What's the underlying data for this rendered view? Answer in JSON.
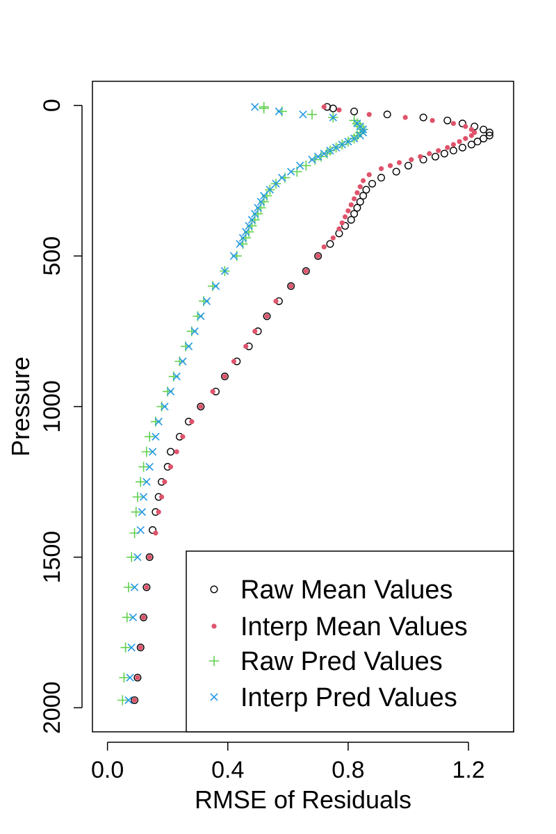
{
  "chart_data": {
    "type": "scatter",
    "title": "",
    "xlabel": "RMSE of Residuals",
    "ylabel": "Pressure",
    "xlim": [
      -0.05,
      1.35
    ],
    "ylim": [
      2080,
      -80
    ],
    "y_reversed": true,
    "x_ticks": [
      "0.0",
      "0.4",
      "0.8",
      "1.2"
    ],
    "x_tick_values": [
      0.0,
      0.4,
      0.8,
      1.2
    ],
    "y_ticks": [
      "0",
      "500",
      "1000",
      "1500",
      "2000"
    ],
    "y_tick_values": [
      0,
      500,
      1000,
      1500,
      2000
    ],
    "grid": false,
    "legend_position": "bottom-right",
    "series": [
      {
        "name": "Raw Mean Values",
        "marker": "open-circle",
        "color": "#000000",
        "points": [
          [
            0.73,
            5
          ],
          [
            0.75,
            10
          ],
          [
            0.82,
            20
          ],
          [
            0.93,
            30
          ],
          [
            1.05,
            40
          ],
          [
            1.13,
            50
          ],
          [
            1.18,
            60
          ],
          [
            1.22,
            70
          ],
          [
            1.25,
            80
          ],
          [
            1.27,
            90
          ],
          [
            1.27,
            100
          ],
          [
            1.25,
            110
          ],
          [
            1.23,
            120
          ],
          [
            1.21,
            130
          ],
          [
            1.18,
            140
          ],
          [
            1.15,
            150
          ],
          [
            1.12,
            160
          ],
          [
            1.09,
            170
          ],
          [
            1.05,
            180
          ],
          [
            1.0,
            200
          ],
          [
            0.96,
            220
          ],
          [
            0.91,
            240
          ],
          [
            0.88,
            260
          ],
          [
            0.86,
            280
          ],
          [
            0.85,
            300
          ],
          [
            0.84,
            320
          ],
          [
            0.83,
            340
          ],
          [
            0.82,
            360
          ],
          [
            0.81,
            380
          ],
          [
            0.79,
            400
          ],
          [
            0.77,
            425
          ],
          [
            0.74,
            460
          ],
          [
            0.7,
            500
          ],
          [
            0.66,
            550
          ],
          [
            0.61,
            600
          ],
          [
            0.57,
            650
          ],
          [
            0.53,
            700
          ],
          [
            0.5,
            750
          ],
          [
            0.47,
            800
          ],
          [
            0.43,
            850
          ],
          [
            0.39,
            900
          ],
          [
            0.36,
            950
          ],
          [
            0.31,
            1000
          ],
          [
            0.27,
            1050
          ],
          [
            0.24,
            1100
          ],
          [
            0.21,
            1150
          ],
          [
            0.2,
            1200
          ],
          [
            0.18,
            1250
          ],
          [
            0.17,
            1300
          ],
          [
            0.16,
            1350
          ],
          [
            0.15,
            1410
          ],
          [
            0.14,
            1500
          ],
          [
            0.13,
            1600
          ],
          [
            0.12,
            1700
          ],
          [
            0.11,
            1800
          ],
          [
            0.1,
            1900
          ],
          [
            0.09,
            1975
          ]
        ]
      },
      {
        "name": "Interp Mean Values",
        "marker": "filled-dot",
        "color": "#df536b",
        "points": [
          [
            0.72,
            5
          ],
          [
            0.77,
            15
          ],
          [
            0.87,
            30
          ],
          [
            0.99,
            40
          ],
          [
            1.08,
            50
          ],
          [
            1.15,
            60
          ],
          [
            1.19,
            70
          ],
          [
            1.21,
            80
          ],
          [
            1.22,
            90
          ],
          [
            1.21,
            100
          ],
          [
            1.19,
            110
          ],
          [
            1.17,
            120
          ],
          [
            1.15,
            130
          ],
          [
            1.13,
            140
          ],
          [
            1.1,
            150
          ],
          [
            1.07,
            160
          ],
          [
            1.04,
            170
          ],
          [
            1.01,
            180
          ],
          [
            0.97,
            190
          ],
          [
            0.94,
            200
          ],
          [
            0.91,
            210
          ],
          [
            0.87,
            230
          ],
          [
            0.85,
            250
          ],
          [
            0.84,
            270
          ],
          [
            0.83,
            290
          ],
          [
            0.82,
            310
          ],
          [
            0.81,
            330
          ],
          [
            0.8,
            350
          ],
          [
            0.79,
            370
          ],
          [
            0.78,
            390
          ],
          [
            0.77,
            410
          ],
          [
            0.75,
            440
          ],
          [
            0.72,
            470
          ],
          [
            0.7,
            500
          ],
          [
            0.66,
            550
          ],
          [
            0.61,
            600
          ],
          [
            0.56,
            650
          ],
          [
            0.53,
            700
          ],
          [
            0.49,
            750
          ],
          [
            0.46,
            800
          ],
          [
            0.42,
            850
          ],
          [
            0.39,
            900
          ],
          [
            0.35,
            950
          ],
          [
            0.31,
            1000
          ],
          [
            0.28,
            1050
          ],
          [
            0.25,
            1100
          ],
          [
            0.23,
            1150
          ],
          [
            0.21,
            1200
          ],
          [
            0.19,
            1250
          ],
          [
            0.18,
            1300
          ],
          [
            0.17,
            1350
          ],
          [
            0.16,
            1420
          ],
          [
            0.14,
            1500
          ],
          [
            0.13,
            1600
          ],
          [
            0.12,
            1700
          ],
          [
            0.11,
            1800
          ],
          [
            0.1,
            1900
          ],
          [
            0.09,
            1975
          ]
        ]
      },
      {
        "name": "Raw Pred Values",
        "marker": "plus",
        "color": "#61d04f",
        "points": [
          [
            0.52,
            5
          ],
          [
            0.52,
            10
          ],
          [
            0.58,
            20
          ],
          [
            0.68,
            30
          ],
          [
            0.75,
            40
          ],
          [
            0.82,
            50
          ],
          [
            0.83,
            60
          ],
          [
            0.84,
            70
          ],
          [
            0.85,
            80
          ],
          [
            0.84,
            90
          ],
          [
            0.83,
            100
          ],
          [
            0.82,
            110
          ],
          [
            0.8,
            120
          ],
          [
            0.78,
            130
          ],
          [
            0.76,
            140
          ],
          [
            0.74,
            150
          ],
          [
            0.73,
            160
          ],
          [
            0.71,
            170
          ],
          [
            0.69,
            180
          ],
          [
            0.66,
            200
          ],
          [
            0.63,
            220
          ],
          [
            0.59,
            240
          ],
          [
            0.56,
            260
          ],
          [
            0.54,
            280
          ],
          [
            0.53,
            300
          ],
          [
            0.52,
            320
          ],
          [
            0.51,
            340
          ],
          [
            0.5,
            360
          ],
          [
            0.49,
            380
          ],
          [
            0.48,
            400
          ],
          [
            0.47,
            420
          ],
          [
            0.46,
            440
          ],
          [
            0.45,
            460
          ],
          [
            0.43,
            500
          ],
          [
            0.39,
            550
          ],
          [
            0.35,
            600
          ],
          [
            0.32,
            650
          ],
          [
            0.3,
            700
          ],
          [
            0.28,
            750
          ],
          [
            0.26,
            800
          ],
          [
            0.24,
            850
          ],
          [
            0.22,
            900
          ],
          [
            0.2,
            950
          ],
          [
            0.18,
            1000
          ],
          [
            0.16,
            1050
          ],
          [
            0.14,
            1100
          ],
          [
            0.13,
            1150
          ],
          [
            0.12,
            1200
          ],
          [
            0.11,
            1250
          ],
          [
            0.1,
            1300
          ],
          [
            0.095,
            1350
          ],
          [
            0.09,
            1420
          ],
          [
            0.08,
            1500
          ],
          [
            0.07,
            1600
          ],
          [
            0.065,
            1700
          ],
          [
            0.06,
            1800
          ],
          [
            0.055,
            1900
          ],
          [
            0.05,
            1975
          ]
        ]
      },
      {
        "name": "Interp Pred Values",
        "marker": "cross",
        "color": "#2297e6",
        "points": [
          [
            0.49,
            5
          ],
          [
            0.57,
            20
          ],
          [
            0.65,
            30
          ],
          [
            0.75,
            40
          ],
          [
            0.83,
            60
          ],
          [
            0.84,
            70
          ],
          [
            0.85,
            80
          ],
          [
            0.85,
            90
          ],
          [
            0.84,
            100
          ],
          [
            0.82,
            110
          ],
          [
            0.8,
            120
          ],
          [
            0.78,
            130
          ],
          [
            0.76,
            140
          ],
          [
            0.74,
            150
          ],
          [
            0.72,
            160
          ],
          [
            0.7,
            170
          ],
          [
            0.68,
            180
          ],
          [
            0.64,
            200
          ],
          [
            0.61,
            220
          ],
          [
            0.58,
            240
          ],
          [
            0.56,
            260
          ],
          [
            0.54,
            280
          ],
          [
            0.52,
            300
          ],
          [
            0.51,
            320
          ],
          [
            0.5,
            340
          ],
          [
            0.49,
            360
          ],
          [
            0.48,
            380
          ],
          [
            0.47,
            400
          ],
          [
            0.46,
            420
          ],
          [
            0.45,
            440
          ],
          [
            0.44,
            460
          ],
          [
            0.42,
            500
          ],
          [
            0.39,
            550
          ],
          [
            0.36,
            600
          ],
          [
            0.33,
            650
          ],
          [
            0.31,
            700
          ],
          [
            0.29,
            750
          ],
          [
            0.27,
            800
          ],
          [
            0.25,
            850
          ],
          [
            0.23,
            900
          ],
          [
            0.21,
            950
          ],
          [
            0.19,
            1000
          ],
          [
            0.17,
            1050
          ],
          [
            0.16,
            1100
          ],
          [
            0.15,
            1150
          ],
          [
            0.14,
            1200
          ],
          [
            0.13,
            1250
          ],
          [
            0.12,
            1300
          ],
          [
            0.115,
            1350
          ],
          [
            0.11,
            1410
          ],
          [
            0.1,
            1500
          ],
          [
            0.09,
            1600
          ],
          [
            0.085,
            1700
          ],
          [
            0.08,
            1800
          ],
          [
            0.075,
            1900
          ],
          [
            0.07,
            1975
          ]
        ]
      }
    ]
  }
}
